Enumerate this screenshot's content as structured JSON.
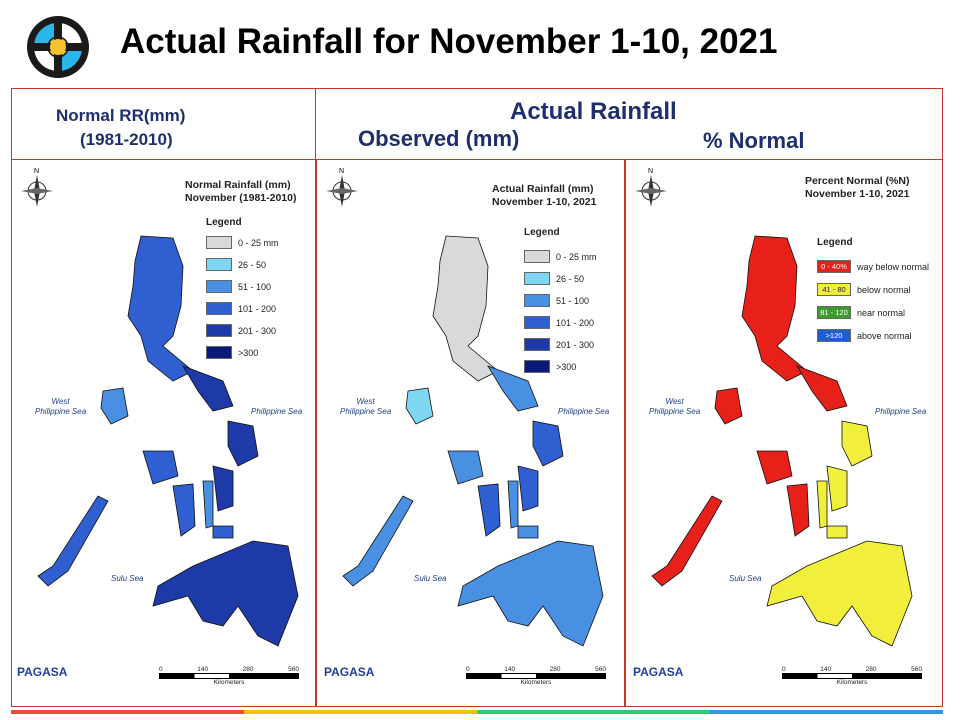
{
  "title": "Actual Rainfall for November 1-10, 2021",
  "header": {
    "normal_line1": "Normal RR(mm)",
    "normal_line2": "(1981-2010)",
    "actual": "Actual Rainfall",
    "observed": "Observed (mm)",
    "percent": "% Normal"
  },
  "colors": {
    "frame": "#c0392b",
    "header_text": "#1f2f6b"
  },
  "panels": [
    {
      "title_line1": "Normal Rainfall (mm)",
      "title_line2": "November (1981-2010)",
      "legend_title": "Legend",
      "legend": [
        {
          "label": "0 - 25 mm",
          "color": "#d9d9d9"
        },
        {
          "label": "26 - 50",
          "color": "#7fd6f2"
        },
        {
          "label": "51 - 100",
          "color": "#4a90e2"
        },
        {
          "label": "101 - 200",
          "color": "#2f5fd0"
        },
        {
          "label": "201 - 300",
          "color": "#1e3aa8"
        },
        {
          "label": ">300",
          "color": "#0a1a7a"
        }
      ],
      "seas": {
        "west_1": "West",
        "west_2": "Philippine Sea",
        "east": "Philippine Sea",
        "sulu": "Sulu Sea"
      }
    },
    {
      "title_line1": "Actual Rainfall (mm)",
      "title_line2": "November 1-10, 2021",
      "legend_title": "Legend",
      "legend": [
        {
          "label": "0 - 25 mm",
          "color": "#d9d9d9"
        },
        {
          "label": "26 - 50",
          "color": "#7fd6f2"
        },
        {
          "label": "51 - 100",
          "color": "#4a90e2"
        },
        {
          "label": "101 - 200",
          "color": "#2f5fd0"
        },
        {
          "label": "201 - 300",
          "color": "#1e3aa8"
        },
        {
          "label": ">300",
          "color": "#0a1a7a"
        }
      ],
      "seas": {
        "west_1": "West",
        "west_2": "Philippine Sea",
        "east": "Philippine Sea",
        "sulu": "Sulu Sea"
      }
    },
    {
      "title_line1": "Percent Normal (%N)",
      "title_line2": "November 1-10, 2021",
      "legend_title": "Legend",
      "legend": [
        {
          "swatch": "0 - 40%",
          "label": "way below normal",
          "color": "#e8201a"
        },
        {
          "swatch": "41 - 80",
          "label": "below normal",
          "color": "#f2ee3c"
        },
        {
          "swatch": "81 - 120",
          "label": "near normal",
          "color": "#3f9b2e"
        },
        {
          "swatch": ">120",
          "label": "above normal",
          "color": "#1e5fd0"
        }
      ],
      "seas": {
        "west_1": "West",
        "west_2": "Philippine Sea",
        "east": "Philippine Sea",
        "sulu": "Sulu Sea"
      }
    }
  ],
  "scale": {
    "ticks": [
      "0",
      "140",
      "280",
      "560"
    ],
    "unit": "Kilometers"
  },
  "brand": "PAGASA",
  "footer_strip_colors": [
    "#e74c3c",
    "#f1c40f",
    "#2ecc71",
    "#3498db"
  ]
}
